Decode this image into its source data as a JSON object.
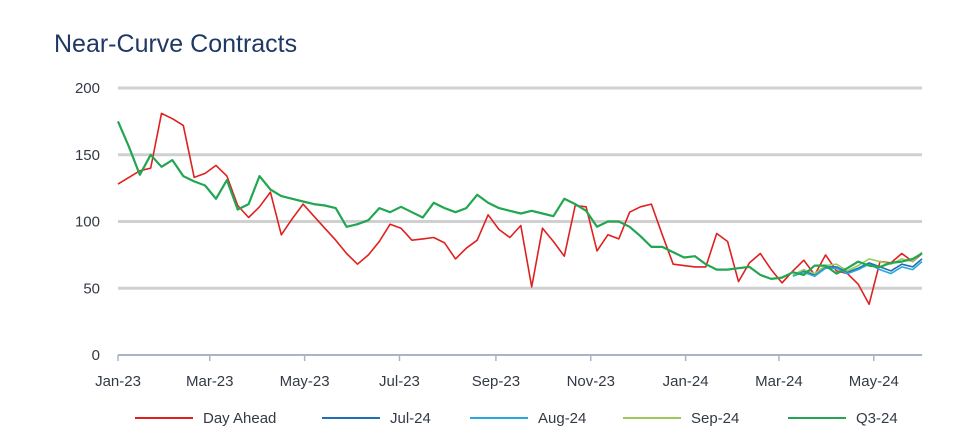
{
  "chart_data": {
    "type": "line",
    "title": "Near-Curve Contracts",
    "xlabel": "",
    "ylabel": "",
    "ylim": [
      0,
      200
    ],
    "yticks": [
      0,
      50,
      100,
      150,
      200
    ],
    "xlim": [
      "2023-01-01",
      "2024-06-01"
    ],
    "xticks": [
      {
        "date": "2023-01-01",
        "label": "Jan-23"
      },
      {
        "date": "2023-03-01",
        "label": "Mar-23"
      },
      {
        "date": "2023-05-01",
        "label": "May-23"
      },
      {
        "date": "2023-07-01",
        "label": "Jul-23"
      },
      {
        "date": "2023-09-01",
        "label": "Sep-23"
      },
      {
        "date": "2023-11-01",
        "label": "Nov-23"
      },
      {
        "date": "2024-01-01",
        "label": "Jan-24"
      },
      {
        "date": "2024-03-01",
        "label": "Mar-24"
      },
      {
        "date": "2024-05-01",
        "label": "May-24"
      }
    ],
    "grid": "horizontal",
    "legend": "bottom",
    "series": [
      {
        "name": "Day Ahead",
        "color": "#e02020",
        "points": [
          [
            "2023-01-01",
            128
          ],
          [
            "2023-01-08",
            133
          ],
          [
            "2023-01-15",
            138
          ],
          [
            "2023-01-22",
            140
          ],
          [
            "2023-01-29",
            181
          ],
          [
            "2023-02-05",
            177
          ],
          [
            "2023-02-12",
            172
          ],
          [
            "2023-02-19",
            133
          ],
          [
            "2023-02-26",
            136
          ],
          [
            "2023-03-05",
            142
          ],
          [
            "2023-03-12",
            134
          ],
          [
            "2023-03-19",
            112
          ],
          [
            "2023-03-26",
            103
          ],
          [
            "2023-04-02",
            111
          ],
          [
            "2023-04-09",
            122
          ],
          [
            "2023-04-16",
            90
          ],
          [
            "2023-04-23",
            102
          ],
          [
            "2023-04-30",
            113
          ],
          [
            "2023-05-07",
            104
          ],
          [
            "2023-05-14",
            95
          ],
          [
            "2023-05-21",
            86
          ],
          [
            "2023-05-28",
            76
          ],
          [
            "2023-06-04",
            68
          ],
          [
            "2023-06-11",
            75
          ],
          [
            "2023-06-18",
            85
          ],
          [
            "2023-06-25",
            98
          ],
          [
            "2023-07-02",
            95
          ],
          [
            "2023-07-09",
            86
          ],
          [
            "2023-07-16",
            87
          ],
          [
            "2023-07-23",
            88
          ],
          [
            "2023-07-30",
            84
          ],
          [
            "2023-08-06",
            72
          ],
          [
            "2023-08-13",
            80
          ],
          [
            "2023-08-20",
            86
          ],
          [
            "2023-08-27",
            105
          ],
          [
            "2023-09-03",
            94
          ],
          [
            "2023-09-10",
            88
          ],
          [
            "2023-09-17",
            97
          ],
          [
            "2023-09-24",
            51
          ],
          [
            "2023-10-01",
            95
          ],
          [
            "2023-10-08",
            85
          ],
          [
            "2023-10-15",
            74
          ],
          [
            "2023-10-22",
            112
          ],
          [
            "2023-10-29",
            111
          ],
          [
            "2023-11-05",
            78
          ],
          [
            "2023-11-12",
            90
          ],
          [
            "2023-11-19",
            87
          ],
          [
            "2023-11-26",
            107
          ],
          [
            "2023-12-03",
            111
          ],
          [
            "2023-12-10",
            113
          ],
          [
            "2023-12-17",
            90
          ],
          [
            "2023-12-24",
            68
          ],
          [
            "2023-12-31",
            67
          ],
          [
            "2024-01-07",
            66
          ],
          [
            "2024-01-14",
            66
          ],
          [
            "2024-01-21",
            91
          ],
          [
            "2024-01-28",
            85
          ],
          [
            "2024-02-04",
            55
          ],
          [
            "2024-02-11",
            69
          ],
          [
            "2024-02-18",
            76
          ],
          [
            "2024-02-25",
            64
          ],
          [
            "2024-03-03",
            54
          ],
          [
            "2024-03-10",
            63
          ],
          [
            "2024-03-17",
            71
          ],
          [
            "2024-03-24",
            60
          ],
          [
            "2024-03-31",
            75
          ],
          [
            "2024-04-07",
            63
          ],
          [
            "2024-04-14",
            61
          ],
          [
            "2024-04-21",
            53
          ],
          [
            "2024-04-28",
            38
          ],
          [
            "2024-05-05",
            70
          ],
          [
            "2024-05-12",
            69
          ],
          [
            "2024-05-19",
            76
          ],
          [
            "2024-05-26",
            70
          ],
          [
            "2024-06-01",
            76
          ]
        ]
      },
      {
        "name": "Jul-24",
        "color": "#1f6fb5",
        "points": [
          [
            "2024-03-10",
            59
          ],
          [
            "2024-03-17",
            63
          ],
          [
            "2024-03-24",
            60
          ],
          [
            "2024-03-31",
            66
          ],
          [
            "2024-04-07",
            66
          ],
          [
            "2024-04-14",
            62
          ],
          [
            "2024-04-21",
            65
          ],
          [
            "2024-04-28",
            69
          ],
          [
            "2024-05-05",
            66
          ],
          [
            "2024-05-12",
            63
          ],
          [
            "2024-05-19",
            68
          ],
          [
            "2024-05-26",
            66
          ],
          [
            "2024-06-01",
            72
          ]
        ]
      },
      {
        "name": "Aug-24",
        "color": "#29a8e0",
        "points": [
          [
            "2024-03-10",
            59
          ],
          [
            "2024-03-17",
            62
          ],
          [
            "2024-03-24",
            59
          ],
          [
            "2024-03-31",
            65
          ],
          [
            "2024-04-07",
            65
          ],
          [
            "2024-04-14",
            61
          ],
          [
            "2024-04-21",
            64
          ],
          [
            "2024-04-28",
            68
          ],
          [
            "2024-05-05",
            64
          ],
          [
            "2024-05-12",
            61
          ],
          [
            "2024-05-19",
            66
          ],
          [
            "2024-05-26",
            64
          ],
          [
            "2024-06-01",
            70
          ]
        ]
      },
      {
        "name": "Sep-24",
        "color": "#9bc95a",
        "points": [
          [
            "2024-03-10",
            60
          ],
          [
            "2024-03-17",
            64
          ],
          [
            "2024-03-24",
            61
          ],
          [
            "2024-03-31",
            67
          ],
          [
            "2024-04-07",
            68
          ],
          [
            "2024-04-14",
            63
          ],
          [
            "2024-04-21",
            67
          ],
          [
            "2024-04-28",
            72
          ],
          [
            "2024-05-05",
            70
          ],
          [
            "2024-05-12",
            68
          ],
          [
            "2024-05-19",
            72
          ],
          [
            "2024-05-26",
            70
          ],
          [
            "2024-06-01",
            77
          ]
        ]
      },
      {
        "name": "Q3-24",
        "color": "#22a651",
        "points": [
          [
            "2023-01-01",
            175
          ],
          [
            "2023-01-08",
            156
          ],
          [
            "2023-01-15",
            135
          ],
          [
            "2023-01-22",
            150
          ],
          [
            "2023-01-29",
            141
          ],
          [
            "2023-02-05",
            146
          ],
          [
            "2023-02-12",
            134
          ],
          [
            "2023-02-19",
            130
          ],
          [
            "2023-02-26",
            127
          ],
          [
            "2023-03-05",
            117
          ],
          [
            "2023-03-12",
            131
          ],
          [
            "2023-03-19",
            109
          ],
          [
            "2023-03-26",
            113
          ],
          [
            "2023-04-02",
            134
          ],
          [
            "2023-04-09",
            124
          ],
          [
            "2023-04-16",
            119
          ],
          [
            "2023-04-23",
            117
          ],
          [
            "2023-04-30",
            115
          ],
          [
            "2023-05-07",
            113
          ],
          [
            "2023-05-14",
            112
          ],
          [
            "2023-05-21",
            110
          ],
          [
            "2023-05-28",
            96
          ],
          [
            "2023-06-04",
            98
          ],
          [
            "2023-06-11",
            101
          ],
          [
            "2023-06-18",
            110
          ],
          [
            "2023-06-25",
            107
          ],
          [
            "2023-07-02",
            111
          ],
          [
            "2023-07-09",
            107
          ],
          [
            "2023-07-16",
            103
          ],
          [
            "2023-07-23",
            114
          ],
          [
            "2023-07-30",
            110
          ],
          [
            "2023-08-06",
            107
          ],
          [
            "2023-08-13",
            110
          ],
          [
            "2023-08-20",
            120
          ],
          [
            "2023-08-27",
            114
          ],
          [
            "2023-09-03",
            110
          ],
          [
            "2023-09-10",
            108
          ],
          [
            "2023-09-17",
            106
          ],
          [
            "2023-09-24",
            108
          ],
          [
            "2023-10-01",
            106
          ],
          [
            "2023-10-08",
            104
          ],
          [
            "2023-10-15",
            117
          ],
          [
            "2023-10-22",
            113
          ],
          [
            "2023-10-29",
            108
          ],
          [
            "2023-11-05",
            96
          ],
          [
            "2023-11-12",
            100
          ],
          [
            "2023-11-19",
            100
          ],
          [
            "2023-11-26",
            96
          ],
          [
            "2023-12-03",
            89
          ],
          [
            "2023-12-10",
            81
          ],
          [
            "2023-12-17",
            81
          ],
          [
            "2023-12-24",
            77
          ],
          [
            "2023-12-31",
            73
          ],
          [
            "2024-01-07",
            74
          ],
          [
            "2024-01-14",
            68
          ],
          [
            "2024-01-21",
            64
          ],
          [
            "2024-01-28",
            64
          ],
          [
            "2024-02-04",
            65
          ],
          [
            "2024-02-11",
            66
          ],
          [
            "2024-02-18",
            60
          ],
          [
            "2024-02-25",
            57
          ],
          [
            "2024-03-03",
            58
          ],
          [
            "2024-03-10",
            62
          ],
          [
            "2024-03-17",
            60
          ],
          [
            "2024-03-24",
            67
          ],
          [
            "2024-03-31",
            67
          ],
          [
            "2024-04-07",
            61
          ],
          [
            "2024-04-14",
            65
          ],
          [
            "2024-04-21",
            70
          ],
          [
            "2024-04-28",
            67
          ],
          [
            "2024-05-05",
            66
          ],
          [
            "2024-05-12",
            69
          ],
          [
            "2024-05-19",
            70
          ],
          [
            "2024-05-26",
            72
          ],
          [
            "2024-06-01",
            76
          ]
        ]
      }
    ]
  }
}
